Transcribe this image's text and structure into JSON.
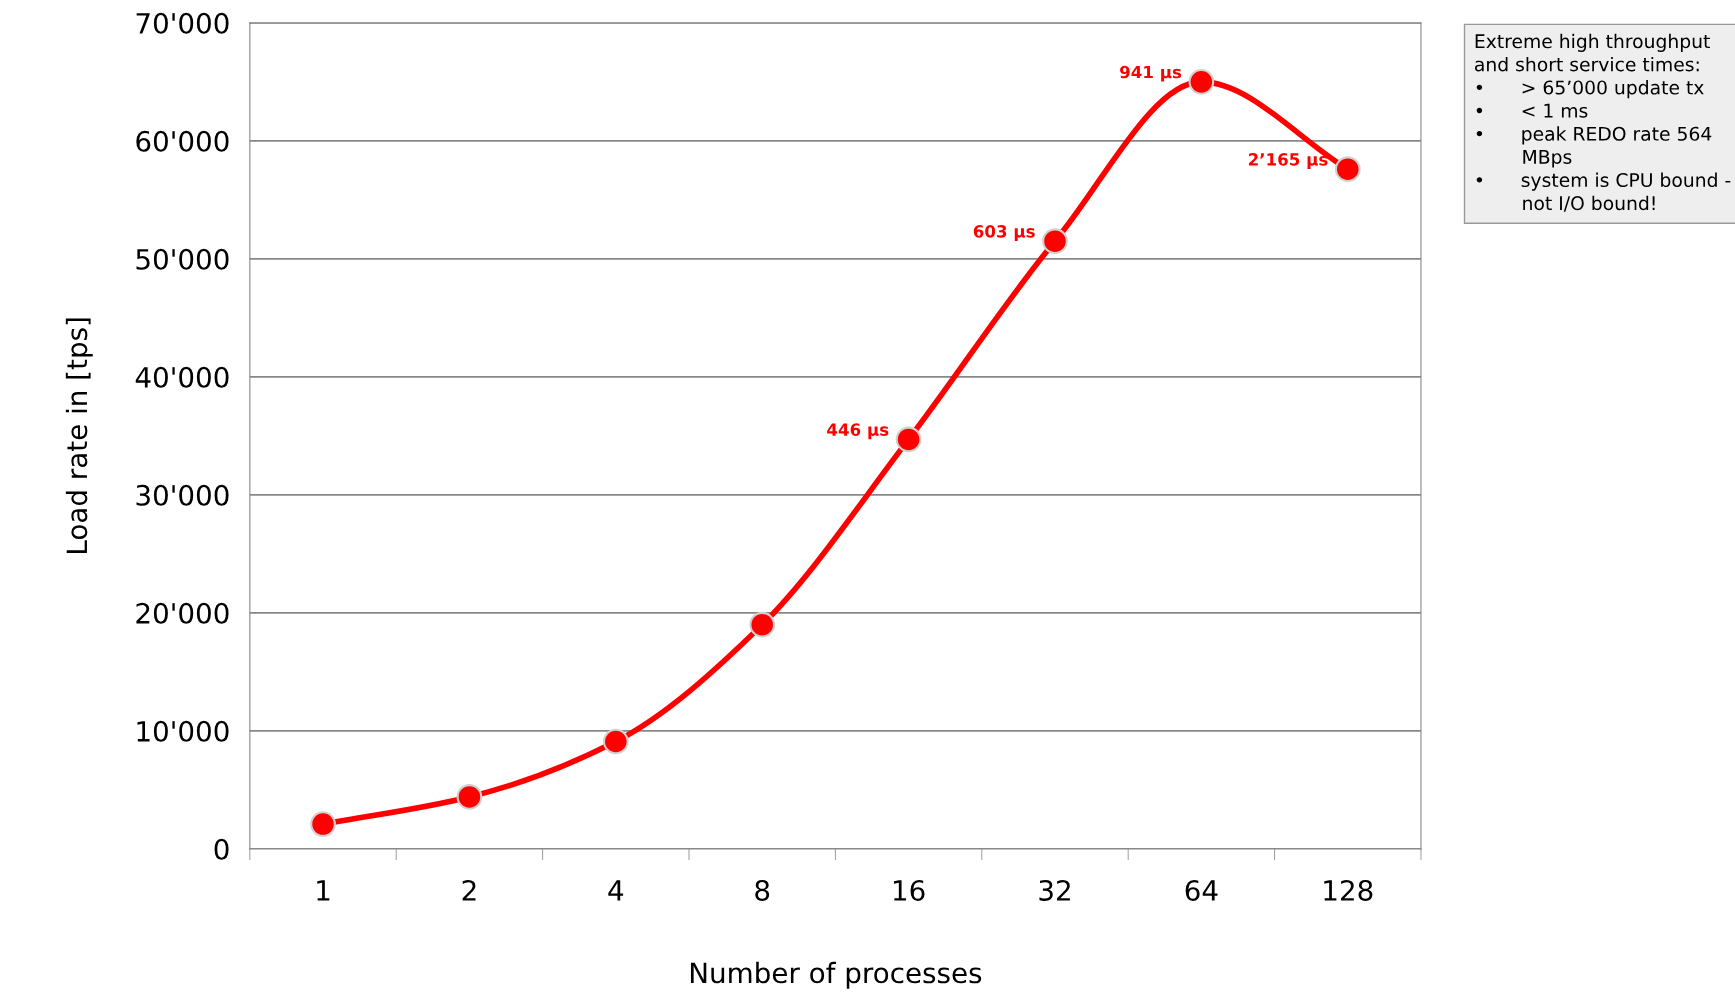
{
  "chart_data": {
    "type": "line",
    "xlabel": "Number of processes",
    "ylabel": "Load rate in [tps]",
    "categories": [
      "1",
      "2",
      "4",
      "8",
      "16",
      "32",
      "64",
      "128"
    ],
    "series": [
      {
        "color": "#ff0000",
        "values": [
          2100,
          4400,
          9100,
          19000,
          34700,
          51500,
          65000,
          57600
        ]
      }
    ],
    "ylim": [
      0,
      70000
    ],
    "yticks": [
      0,
      {
        "value": 10000,
        "label": "10'000"
      },
      {
        "value": 20000,
        "label": "20'000"
      },
      {
        "value": 30000,
        "label": "30'000"
      },
      {
        "value": 40000,
        "label": "40'000"
      },
      {
        "value": 50000,
        "label": "50'000"
      },
      {
        "value": 60000,
        "label": "60'000"
      },
      {
        "value": 70000,
        "label": "70'000"
      }
    ],
    "grid": "y",
    "marker": "circle",
    "line_style": "solid",
    "annotations": [
      {
        "text": "446 µs",
        "x": "16",
        "y": 34700
      },
      {
        "text": "603 µs",
        "x": "32",
        "y": 51500
      },
      {
        "text": "941 µs",
        "x": "64",
        "y": 65000
      },
      {
        "text": "2’165 µs",
        "x": "128",
        "y": 57600
      },
      "Extreme high throughput\nand short service times:\n•      > 65’000 update tx\n•      < 1 ms\n•      peak REDO rate 564\n        MBps\n•      system is CPU bound -\n        not I/O bound!"
    ]
  }
}
